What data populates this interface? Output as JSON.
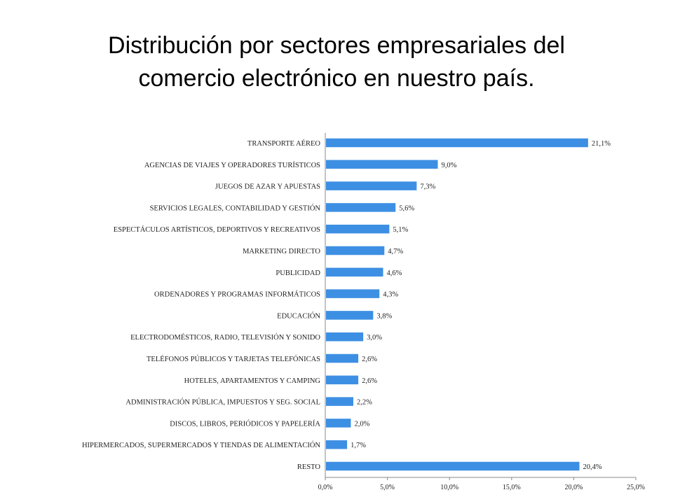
{
  "page": {
    "title_line1": "Distribución por sectores empresariales del",
    "title_line2": "comercio electrónico en nuestro país."
  },
  "chart_data": {
    "type": "bar",
    "orientation": "horizontal",
    "title": "Distribución por sectores empresariales del comercio electrónico en nuestro país.",
    "xlabel": "",
    "ylabel": "",
    "xlim": [
      0,
      25
    ],
    "grid": false,
    "bar_color": "#3d8fe3",
    "categories": [
      "TRANSPORTE AÉREO",
      "AGENCIAS DE VIAJES Y OPERADORES TURÍSTICOS",
      "JUEGOS DE AZAR Y APUESTAS",
      "SERVICIOS LEGALES, CONTABILIDAD Y GESTIÓN",
      "ESPECTÁCULOS ARTÍSTICOS, DEPORTIVOS Y RECREATIVOS",
      "MARKETING DIRECTO",
      "PUBLICIDAD",
      "ORDENADORES Y PROGRAMAS INFORMÁTICOS",
      "EDUCACIÓN",
      "ELECTRODOMÉSTICOS, RADIO, TELEVISIÓN Y SONIDO",
      "TELÉFONOS PÚBLICOS Y TARJETAS TELEFÓNICAS",
      "HOTELES, APARTAMENTOS Y CAMPING",
      "ADMINISTRACIÓN PÚBLICA, IMPUESTOS Y SEG. SOCIAL",
      "DISCOS, LIBROS, PERIÓDICOS Y PAPELERÍA",
      "HIPERMERCADOS, SUPERMERCADOS Y TIENDAS DE ALIMENTACIÓN",
      "RESTO"
    ],
    "values": [
      21.1,
      9.0,
      7.3,
      5.6,
      5.1,
      4.7,
      4.6,
      4.3,
      3.8,
      3.0,
      2.6,
      2.6,
      2.2,
      2.0,
      1.7,
      20.4
    ],
    "value_labels": [
      "21,1%",
      "9,0%",
      "7,3%",
      "5,6%",
      "5,1%",
      "4,7%",
      "4,6%",
      "4,3%",
      "3,8%",
      "3,0%",
      "2,6%",
      "2,6%",
      "2,2%",
      "2,0%",
      "1,7%",
      "20,4%"
    ],
    "ticks": [
      0,
      5,
      10,
      15,
      20,
      25
    ],
    "tick_labels": [
      "0,0%",
      "5,0%",
      "10,0%",
      "15,0%",
      "20,0%",
      "25,0%"
    ]
  }
}
